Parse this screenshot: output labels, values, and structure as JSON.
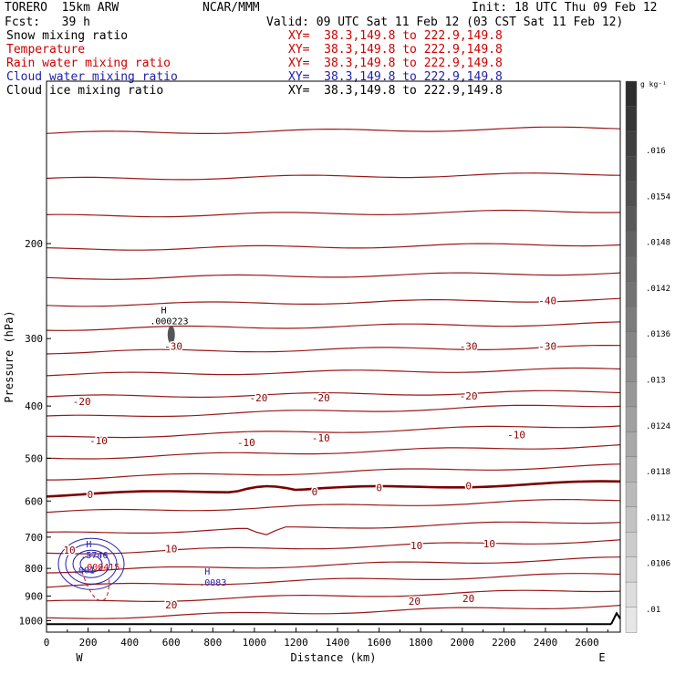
{
  "header": {
    "model": "TORERO  15km ARW",
    "center": "NCAR/MMM",
    "init": "Init: 18 UTC Thu 09 Feb 12",
    "fcst": "Fcst:   39 h",
    "valid": "Valid: 09 UTC Sat 11 Feb 12 (03 CST Sat 11 Feb 12)"
  },
  "legend": [
    {
      "label": "Snow mixing ratio",
      "xy": "",
      "color": "#000000"
    },
    {
      "label": "Temperature",
      "xy": "XY=  38.3,149.8 to 222.9,149.8",
      "color": "#cc0000"
    },
    {
      "label": "Rain water mixing ratio",
      "xy": "XY=  38.3,149.8 to 222.9,149.8",
      "color": "#cc0000"
    },
    {
      "label": "Cloud water mixing ratio",
      "xy": "XY=  38.3,149.8 to 222.9,149.8",
      "color": "#2020b0"
    },
    {
      "label": "Cloud ice mixing ratio",
      "xy": "XY=  38.3,149.8 to 222.9,149.8",
      "color": "#000000"
    }
  ],
  "legend_first_xy": "XY=  38.3,149.8 to 222.9,149.8",
  "chart_data": {
    "type": "cross-section contour",
    "xlabel": "Distance (km)",
    "ylabel": "Pressure (hPa)",
    "x_ticks": [
      0,
      200,
      400,
      600,
      800,
      1000,
      1200,
      1400,
      1600,
      1800,
      2000,
      2200,
      2400,
      2600
    ],
    "y_ticks": [
      200,
      300,
      400,
      500,
      600,
      700,
      800,
      900,
      1000
    ],
    "xlim": [
      0,
      2760
    ],
    "ylim": [
      1050,
      100
    ],
    "x_end_labels": {
      "left": "W",
      "right": "E"
    },
    "colorbar": {
      "unit": "g kg⁻¹",
      "ticks": [
        ".016",
        ".0154",
        ".0148",
        ".0142",
        ".0136",
        ".013",
        ".0124",
        ".0118",
        ".0112",
        ".0106",
        ".01"
      ]
    },
    "temperature_labels": [
      {
        "text": "-40",
        "x": 2410,
        "p": 255
      },
      {
        "text": "-30",
        "x": 610,
        "p": 310
      },
      {
        "text": "-30",
        "x": 2030,
        "p": 310
      },
      {
        "text": "-30",
        "x": 2410,
        "p": 310
      },
      {
        "text": "-20",
        "x": 170,
        "p": 392
      },
      {
        "text": "-20",
        "x": 1020,
        "p": 386
      },
      {
        "text": "-20",
        "x": 1320,
        "p": 386
      },
      {
        "text": "-20",
        "x": 2030,
        "p": 383
      },
      {
        "text": "-10",
        "x": 250,
        "p": 464
      },
      {
        "text": "-10",
        "x": 960,
        "p": 467
      },
      {
        "text": "-10",
        "x": 1320,
        "p": 458
      },
      {
        "text": "-10",
        "x": 2260,
        "p": 452
      },
      {
        "text": "0",
        "x": 210,
        "p": 583
      },
      {
        "text": "0",
        "x": 1290,
        "p": 576
      },
      {
        "text": "0",
        "x": 1600,
        "p": 566
      },
      {
        "text": "0",
        "x": 2030,
        "p": 562
      },
      {
        "text": "10",
        "x": 110,
        "p": 740
      },
      {
        "text": "10",
        "x": 600,
        "p": 735
      },
      {
        "text": "10",
        "x": 1780,
        "p": 725
      },
      {
        "text": "10",
        "x": 2130,
        "p": 720
      },
      {
        "text": "20",
        "x": 600,
        "p": 935
      },
      {
        "text": "20",
        "x": 1770,
        "p": 920
      },
      {
        "text": "20",
        "x": 2030,
        "p": 910
      }
    ],
    "extrema": [
      {
        "label": "H",
        "value": ".000223",
        "x": 590,
        "p": 280,
        "color": "#000000"
      },
      {
        "label": "H",
        "value": ".5746",
        "x": 230,
        "p": 760,
        "color": "#2020b0"
      },
      {
        "label": "",
        "value": ".000415",
        "x": 260,
        "p": 800,
        "color": "#cc0000"
      },
      {
        "label": "",
        "value": ".001",
        "x": 180,
        "p": 810,
        "color": "#2020b0"
      },
      {
        "label": "H",
        "value": ".0083",
        "x": 800,
        "p": 855,
        "color": "#2020b0"
      }
    ]
  }
}
